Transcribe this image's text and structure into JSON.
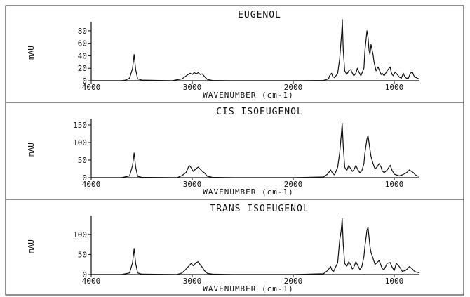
{
  "chart_data": [
    {
      "type": "line",
      "title": "EUGENOL",
      "xlabel": "WAVENUMBER (cm-1)",
      "ylabel": "mAU",
      "xlim": [
        4000,
        750
      ],
      "ylim": [
        0,
        90
      ],
      "xticks": [
        4000,
        3000,
        2000,
        1000
      ],
      "yticks": [
        0,
        20,
        40,
        60,
        80
      ],
      "grid": false,
      "series": [
        {
          "x": [
            4000,
            3700,
            3660,
            3620,
            3590,
            3575,
            3560,
            3540,
            3500,
            3200,
            3100,
            3050,
            3020,
            3000,
            2980,
            2960,
            2940,
            2920,
            2900,
            2880,
            2850,
            2800,
            2600,
            2000,
            1700,
            1650,
            1640,
            1620,
            1610,
            1590,
            1560,
            1540,
            1520,
            1514,
            1505,
            1490,
            1470,
            1450,
            1430,
            1420,
            1400,
            1380,
            1365,
            1350,
            1330,
            1300,
            1290,
            1270,
            1260,
            1250,
            1240,
            1230,
            1210,
            1200,
            1180,
            1160,
            1150,
            1130,
            1120,
            1100,
            1070,
            1040,
            1030,
            1020,
            1010,
            990,
            970,
            950,
            930,
            910,
            900,
            880,
            860,
            850,
            840,
            820,
            800,
            780,
            760,
            750
          ],
          "y": [
            0,
            0,
            1,
            4,
            20,
            42,
            18,
            3,
            1,
            0,
            3,
            9,
            12,
            10,
            13,
            11,
            13,
            10,
            11,
            7,
            2,
            0.5,
            0,
            0,
            0.5,
            3,
            8,
            12,
            7,
            5,
            12,
            35,
            78,
            98,
            50,
            16,
            10,
            16,
            18,
            14,
            8,
            12,
            20,
            14,
            8,
            20,
            48,
            80,
            70,
            50,
            42,
            58,
            42,
            30,
            16,
            22,
            18,
            10,
            12,
            8,
            16,
            22,
            14,
            10,
            8,
            14,
            10,
            6,
            4,
            12,
            8,
            4,
            4,
            8,
            12,
            14,
            6,
            5,
            3,
            3
          ]
        }
      ]
    },
    {
      "type": "line",
      "title": "CIS ISOEUGENOL",
      "xlabel": "WAVENUMBER (cm-1)",
      "ylabel": "mAU",
      "xlim": [
        4000,
        750
      ],
      "ylim": [
        0,
        160
      ],
      "xticks": [
        4000,
        3000,
        2000,
        1000
      ],
      "yticks": [
        0,
        50,
        100,
        150
      ],
      "grid": false,
      "series": [
        {
          "x": [
            4000,
            3700,
            3620,
            3590,
            3575,
            3560,
            3540,
            3500,
            3150,
            3100,
            3060,
            3030,
            3010,
            2990,
            2960,
            2940,
            2920,
            2900,
            2880,
            2850,
            2800,
            2600,
            2000,
            1700,
            1660,
            1630,
            1610,
            1590,
            1560,
            1540,
            1525,
            1515,
            1505,
            1490,
            1470,
            1450,
            1430,
            1415,
            1400,
            1380,
            1360,
            1340,
            1320,
            1300,
            1290,
            1270,
            1260,
            1250,
            1240,
            1230,
            1210,
            1190,
            1170,
            1150,
            1130,
            1120,
            1100,
            1070,
            1040,
            1020,
            1000,
            980,
            950,
            920,
            890,
            870,
            850,
            830,
            810,
            790,
            770,
            750
          ],
          "y": [
            0,
            0,
            5,
            35,
            70,
            30,
            4,
            1,
            0,
            6,
            15,
            35,
            28,
            18,
            26,
            30,
            24,
            18,
            14,
            4,
            1,
            0,
            0,
            2,
            10,
            22,
            12,
            8,
            30,
            70,
            120,
            155,
            90,
            30,
            20,
            35,
            25,
            18,
            22,
            35,
            22,
            14,
            20,
            40,
            70,
            110,
            120,
            100,
            80,
            60,
            40,
            25,
            30,
            40,
            30,
            20,
            14,
            22,
            35,
            20,
            10,
            8,
            5,
            8,
            12,
            16,
            22,
            18,
            14,
            8,
            5,
            4
          ]
        }
      ]
    },
    {
      "type": "line",
      "title": "TRANS ISOEUGENOL",
      "xlabel": "WAVENUMBER (cm-1)",
      "ylabel": "mAU",
      "xlim": [
        4000,
        750
      ],
      "ylim": [
        0,
        140
      ],
      "xticks": [
        4000,
        3000,
        2000,
        1000
      ],
      "yticks": [
        0,
        50,
        100
      ],
      "grid": false,
      "series": [
        {
          "x": [
            4000,
            3700,
            3620,
            3590,
            3575,
            3560,
            3540,
            3500,
            3150,
            3100,
            3060,
            3030,
            3010,
            2990,
            2960,
            2940,
            2920,
            2900,
            2880,
            2850,
            2800,
            2600,
            2000,
            1700,
            1660,
            1630,
            1615,
            1600,
            1560,
            1540,
            1525,
            1515,
            1505,
            1490,
            1470,
            1450,
            1430,
            1415,
            1400,
            1380,
            1360,
            1340,
            1320,
            1300,
            1290,
            1270,
            1260,
            1250,
            1240,
            1230,
            1210,
            1190,
            1170,
            1150,
            1130,
            1120,
            1100,
            1070,
            1040,
            1020,
            1000,
            980,
            950,
            920,
            890,
            870,
            850,
            820,
            800,
            780,
            760,
            750
          ],
          "y": [
            0,
            0,
            4,
            30,
            65,
            28,
            4,
            1,
            0,
            4,
            14,
            22,
            28,
            22,
            30,
            32,
            24,
            18,
            10,
            3,
            1,
            0,
            0,
            2,
            10,
            20,
            10,
            8,
            30,
            85,
            110,
            140,
            75,
            28,
            20,
            32,
            24,
            14,
            18,
            32,
            22,
            12,
            20,
            45,
            70,
            110,
            118,
            95,
            70,
            55,
            40,
            25,
            30,
            35,
            22,
            15,
            12,
            28,
            30,
            18,
            10,
            28,
            20,
            8,
            10,
            14,
            20,
            14,
            8,
            6,
            5,
            4
          ]
        }
      ]
    }
  ]
}
